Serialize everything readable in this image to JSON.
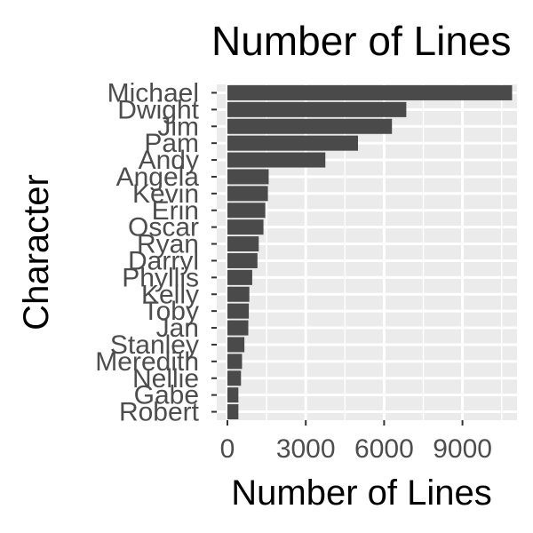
{
  "chart_data": {
    "type": "bar",
    "orientation": "horizontal",
    "title": "Number of Lines",
    "xlabel": "Number of Lines",
    "ylabel": "Character",
    "categories": [
      "Michael",
      "Dwight",
      "Jim",
      "Pam",
      "Andy",
      "Angela",
      "Kevin",
      "Erin",
      "Oscar",
      "Ryan",
      "Darryl",
      "Phyllis",
      "Kelly",
      "Toby",
      "Jan",
      "Stanley",
      "Meredith",
      "Nellie",
      "Gabe",
      "Robert"
    ],
    "values": [
      10900,
      6850,
      6300,
      5000,
      3750,
      1580,
      1550,
      1450,
      1380,
      1200,
      1150,
      950,
      840,
      820,
      800,
      650,
      560,
      520,
      420,
      420
    ],
    "xlim": [
      0,
      11300
    ],
    "xticks": [
      0,
      3000,
      6000,
      9000
    ],
    "xtick_labels": [
      "0",
      "3000",
      "6000",
      "9000"
    ],
    "grid": true,
    "legend": "none",
    "colors": {
      "bar": "#4a4a4a",
      "panel": "#ebebeb",
      "gridline": "#ffffff",
      "tick": "#333333",
      "tick_text": "#4d4d4d"
    }
  }
}
